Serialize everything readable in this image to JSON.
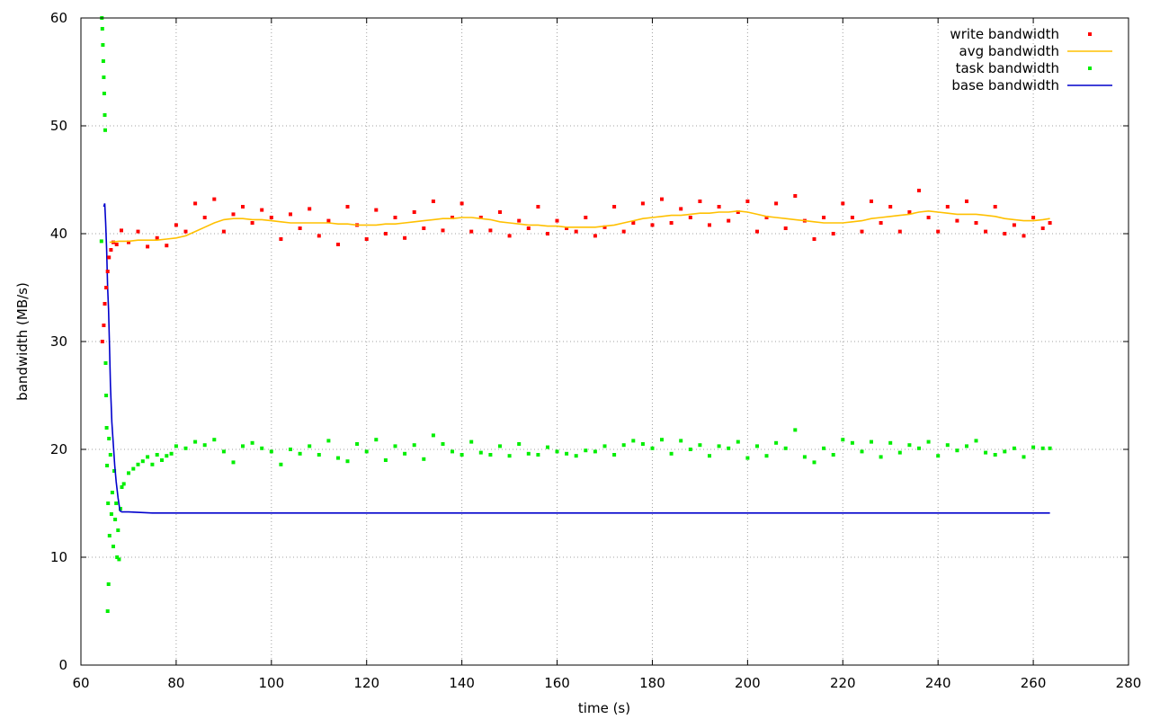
{
  "chart_data": {
    "type": "scatter",
    "xlabel": "time (s)",
    "ylabel": "bandwidth (MB/s)",
    "xlim": [
      60,
      280
    ],
    "ylim": [
      0,
      60
    ],
    "x_ticks": [
      60,
      80,
      100,
      120,
      140,
      160,
      180,
      200,
      220,
      240,
      260,
      280
    ],
    "y_ticks": [
      0,
      10,
      20,
      30,
      40,
      50,
      60
    ],
    "grid": true,
    "legend_position": "top-right",
    "series": [
      {
        "name": "write bandwidth",
        "style": "points",
        "color": "#ff0000",
        "x": [
          64.5,
          64.8,
          65.0,
          65.3,
          65.6,
          65.9,
          66.3,
          66.8,
          67.5,
          68.5,
          70,
          72,
          74,
          76,
          78,
          80,
          82,
          84,
          86,
          88,
          90,
          92,
          94,
          96,
          98,
          100,
          102,
          104,
          106,
          108,
          110,
          112,
          114,
          116,
          118,
          120,
          122,
          124,
          126,
          128,
          130,
          132,
          134,
          136,
          138,
          140,
          142,
          144,
          146,
          148,
          150,
          152,
          154,
          156,
          158,
          160,
          162,
          164,
          166,
          168,
          170,
          172,
          174,
          176,
          178,
          180,
          182,
          184,
          186,
          188,
          190,
          192,
          194,
          196,
          198,
          200,
          202,
          204,
          206,
          208,
          210,
          212,
          214,
          216,
          218,
          220,
          222,
          224,
          226,
          228,
          230,
          232,
          234,
          236,
          238,
          240,
          242,
          244,
          246,
          248,
          250,
          252,
          254,
          256,
          258,
          260,
          262,
          263.5
        ],
        "y": [
          30.0,
          31.5,
          33.5,
          35.0,
          36.5,
          37.8,
          38.5,
          39.2,
          39.0,
          40.3,
          39.2,
          40.2,
          38.8,
          39.6,
          38.9,
          40.8,
          40.2,
          42.8,
          41.5,
          43.2,
          40.2,
          41.8,
          42.5,
          41.0,
          42.2,
          41.5,
          39.5,
          41.8,
          40.5,
          42.3,
          39.8,
          41.2,
          39.0,
          42.5,
          40.8,
          39.5,
          42.2,
          40.0,
          41.5,
          39.6,
          42.0,
          40.5,
          43.0,
          40.3,
          41.5,
          42.8,
          40.2,
          41.5,
          40.3,
          42.0,
          39.8,
          41.2,
          40.5,
          42.5,
          40.0,
          41.2,
          40.5,
          40.2,
          41.5,
          39.8,
          40.6,
          42.5,
          40.2,
          41.0,
          42.8,
          40.8,
          43.2,
          41.0,
          42.3,
          41.5,
          43.0,
          40.8,
          42.5,
          41.2,
          42.0,
          43.0,
          40.2,
          41.5,
          42.8,
          40.5,
          43.5,
          41.2,
          39.5,
          41.5,
          40.0,
          42.8,
          41.5,
          40.2,
          43.0,
          41.0,
          42.5,
          40.2,
          42.0,
          44.0,
          41.5,
          40.2,
          42.5,
          41.2,
          43.0,
          41.0,
          40.2,
          42.5,
          40.0,
          40.8,
          39.8,
          41.5,
          40.5,
          41.0
        ]
      },
      {
        "name": "avg bandwidth",
        "style": "line",
        "color": "#ffc000",
        "x": [
          66.0,
          68,
          70,
          72,
          74,
          76,
          78,
          80,
          82,
          84,
          86,
          88,
          90,
          92,
          94,
          96,
          98,
          100,
          102,
          104,
          106,
          108,
          110,
          112,
          114,
          116,
          118,
          120,
          122,
          124,
          126,
          128,
          130,
          132,
          134,
          136,
          138,
          140,
          142,
          144,
          146,
          148,
          150,
          152,
          154,
          156,
          158,
          160,
          162,
          164,
          166,
          168,
          170,
          172,
          174,
          176,
          178,
          180,
          182,
          184,
          186,
          188,
          190,
          192,
          194,
          196,
          198,
          200,
          202,
          204,
          206,
          208,
          210,
          212,
          214,
          216,
          218,
          220,
          222,
          224,
          226,
          228,
          230,
          232,
          234,
          236,
          238,
          240,
          242,
          244,
          246,
          248,
          250,
          252,
          254,
          256,
          258,
          260,
          262,
          263.5
        ],
        "y": [
          39.2,
          39.3,
          39.3,
          39.4,
          39.4,
          39.4,
          39.5,
          39.6,
          39.8,
          40.2,
          40.6,
          41.0,
          41.3,
          41.4,
          41.4,
          41.3,
          41.3,
          41.2,
          41.1,
          41.0,
          41.0,
          41.0,
          41.0,
          41.0,
          40.9,
          40.9,
          40.8,
          40.8,
          40.8,
          40.9,
          40.9,
          41.0,
          41.1,
          41.2,
          41.3,
          41.4,
          41.4,
          41.5,
          41.5,
          41.4,
          41.3,
          41.1,
          41.0,
          40.9,
          40.8,
          40.8,
          40.7,
          40.7,
          40.6,
          40.6,
          40.6,
          40.6,
          40.7,
          40.8,
          41.0,
          41.2,
          41.4,
          41.5,
          41.6,
          41.7,
          41.7,
          41.8,
          41.9,
          41.9,
          42.0,
          42.0,
          42.1,
          42.0,
          41.8,
          41.6,
          41.5,
          41.4,
          41.3,
          41.2,
          41.1,
          41.0,
          41.0,
          41.0,
          41.1,
          41.2,
          41.4,
          41.5,
          41.6,
          41.7,
          41.8,
          42.0,
          42.1,
          42.0,
          41.9,
          41.8,
          41.8,
          41.8,
          41.7,
          41.6,
          41.4,
          41.3,
          41.2,
          41.2,
          41.3,
          41.4
        ]
      },
      {
        "name": "task bandwidth",
        "style": "points",
        "color": "#00ee00",
        "x": [
          64.3,
          64.4,
          64.5,
          64.6,
          64.7,
          64.8,
          64.9,
          65.0,
          65.1,
          65.2,
          65.3,
          65.4,
          65.5,
          65.6,
          65.7,
          65.8,
          65.9,
          66.0,
          66.2,
          66.4,
          66.6,
          66.8,
          67.0,
          67.2,
          67.4,
          67.6,
          67.8,
          68.0,
          68.3,
          68.6,
          69,
          70,
          71,
          72,
          73,
          74,
          75,
          76,
          77,
          78,
          79,
          80,
          82,
          84,
          86,
          88,
          90,
          92,
          94,
          96,
          98,
          100,
          102,
          104,
          106,
          108,
          110,
          112,
          114,
          116,
          118,
          120,
          122,
          124,
          126,
          128,
          130,
          132,
          134,
          136,
          138,
          140,
          142,
          144,
          146,
          148,
          150,
          152,
          154,
          156,
          158,
          160,
          162,
          164,
          166,
          168,
          170,
          172,
          174,
          176,
          178,
          180,
          182,
          184,
          186,
          188,
          190,
          192,
          194,
          196,
          198,
          200,
          202,
          204,
          206,
          208,
          210,
          212,
          214,
          216,
          218,
          220,
          222,
          224,
          226,
          228,
          230,
          232,
          234,
          236,
          238,
          240,
          242,
          244,
          246,
          248,
          250,
          252,
          254,
          256,
          258,
          260,
          262,
          263.5
        ],
        "y": [
          39.3,
          60.0,
          59.0,
          57.5,
          56.0,
          54.5,
          53.0,
          51.0,
          49.6,
          28.0,
          25.0,
          22.0,
          18.5,
          5.0,
          15.0,
          7.5,
          21.0,
          12.0,
          19.5,
          14.0,
          16.0,
          11.0,
          18.0,
          13.5,
          15.0,
          10.0,
          12.5,
          9.8,
          14.5,
          16.5,
          16.8,
          17.8,
          18.2,
          18.6,
          18.9,
          19.3,
          18.6,
          19.5,
          19.0,
          19.4,
          19.6,
          20.3,
          20.1,
          20.7,
          20.4,
          20.9,
          19.8,
          18.8,
          20.3,
          20.6,
          20.1,
          19.8,
          18.6,
          20.0,
          19.6,
          20.3,
          19.5,
          20.8,
          19.2,
          18.9,
          20.5,
          19.8,
          20.9,
          19.0,
          20.3,
          19.6,
          20.4,
          19.1,
          21.3,
          20.5,
          19.8,
          19.5,
          20.7,
          19.7,
          19.5,
          20.3,
          19.4,
          20.5,
          19.6,
          19.5,
          20.2,
          19.8,
          19.6,
          19.4,
          19.9,
          19.8,
          20.3,
          19.5,
          20.4,
          20.8,
          20.5,
          20.1,
          20.9,
          19.6,
          20.8,
          20.0,
          20.4,
          19.4,
          20.3,
          20.1,
          20.7,
          19.2,
          20.3,
          19.4,
          20.6,
          20.1,
          21.8,
          19.3,
          18.8,
          20.1,
          19.5,
          20.9,
          20.6,
          19.8,
          20.7,
          19.3,
          20.6,
          19.7,
          20.4,
          20.1,
          20.7,
          19.4,
          20.4,
          19.9,
          20.3,
          20.8,
          19.7,
          19.5,
          19.8,
          20.1,
          19.3,
          20.2,
          20.1,
          20.1
        ]
      },
      {
        "name": "base bandwidth",
        "style": "line",
        "color": "#0000cc",
        "x": [
          64.8,
          65.0,
          65.2,
          65.4,
          65.6,
          65.8,
          66.0,
          66.2,
          66.5,
          66.8,
          67.1,
          67.4,
          67.8,
          68.2,
          68.6,
          70,
          75,
          80,
          100,
          150,
          200,
          250,
          263.5
        ],
        "y": [
          42.5,
          42.8,
          41.0,
          38.5,
          35.0,
          33.0,
          29.5,
          26.0,
          22.5,
          20.5,
          18.5,
          17.0,
          15.5,
          14.3,
          14.2,
          14.2,
          14.1,
          14.1,
          14.1,
          14.1,
          14.1,
          14.1,
          14.1
        ]
      }
    ]
  }
}
